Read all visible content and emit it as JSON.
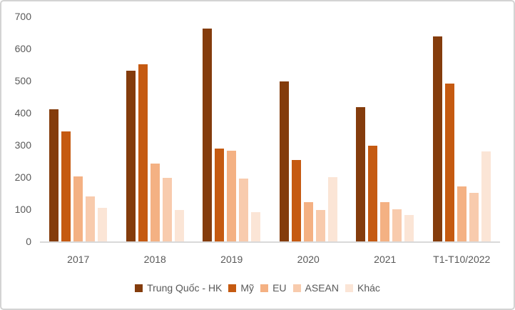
{
  "frame": {
    "background": "#FFFFFF",
    "border_color": "#D3D3D3"
  },
  "chart_data": {
    "type": "bar",
    "title": "",
    "xlabel": "",
    "ylabel": "",
    "categories": [
      "2017",
      "2018",
      "2019",
      "2020",
      "2021",
      "T1-T10/2022"
    ],
    "series": [
      {
        "name": "Trung Quốc - HK",
        "color": "#843C0C",
        "values": [
          410,
          530,
          663,
          498,
          418,
          638
        ]
      },
      {
        "name": "Mỹ",
        "color": "#C55A11",
        "values": [
          343,
          550,
          289,
          254,
          298,
          490
        ]
      },
      {
        "name": "EU",
        "color": "#F4B183",
        "values": [
          202,
          243,
          283,
          122,
          123,
          172
        ]
      },
      {
        "name": "ASEAN",
        "color": "#F8CBAD",
        "values": [
          141,
          198,
          196,
          98,
          100,
          151
        ]
      },
      {
        "name": "Khác",
        "color": "#FBE5D6",
        "values": [
          104,
          97,
          91,
          199,
          83,
          281
        ]
      }
    ],
    "ylim": [
      0,
      700
    ],
    "yticks": [
      0,
      100,
      200,
      300,
      400,
      500,
      600,
      700
    ],
    "grid": false,
    "legend_position": "bottom",
    "axis_text_color": "#595959",
    "axis_line_color": "#D9D9D9"
  }
}
